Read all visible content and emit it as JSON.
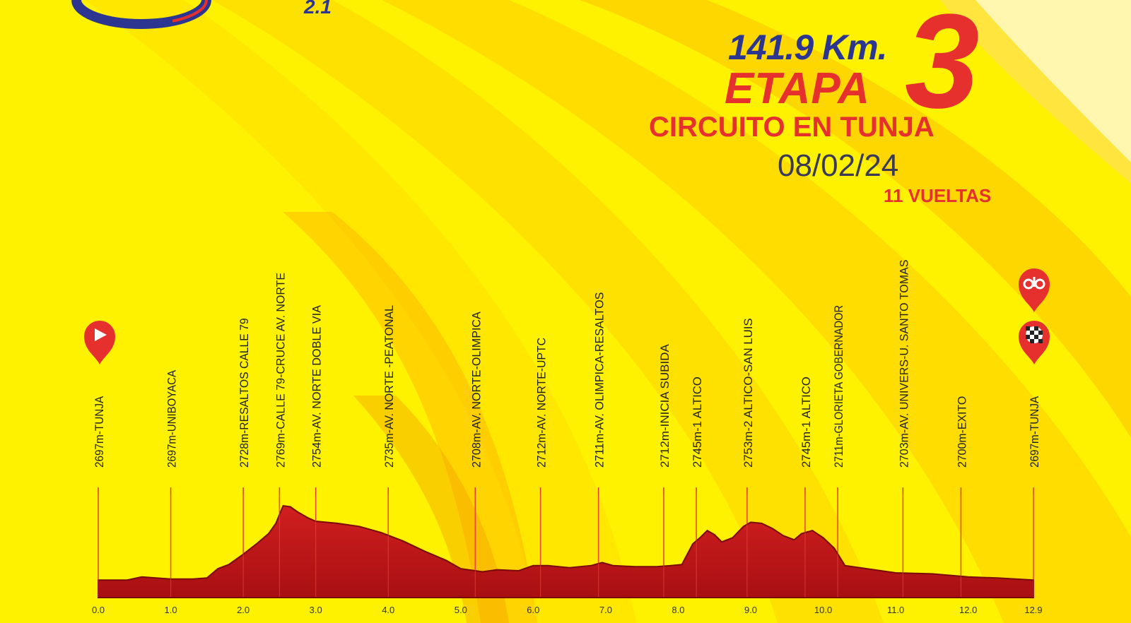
{
  "header": {
    "category": "2.1",
    "distance": "141.9 Km.",
    "stage_word": "ETAPA",
    "stage_number": "3",
    "route": "CIRCUITO EN TUNJA",
    "date": "08/02/24",
    "laps": "11 VUELTAS"
  },
  "colors": {
    "profile": "#c8161b",
    "title_blue": "#2c3691",
    "title_red": "#e6302d",
    "marker_line": "#e0392f"
  },
  "chart_data": {
    "type": "area",
    "x_axis": {
      "range": [
        0,
        12.9
      ],
      "tick_labels": [
        "0.0",
        "1.0",
        "2.0",
        "3.0",
        "4.0",
        "5.0",
        "6.0",
        "7.0",
        "8.0",
        "9.0",
        "10.0",
        "11.0",
        "12.0",
        "12.9"
      ],
      "tick_values": [
        0,
        1,
        2,
        3,
        4,
        5,
        6,
        7,
        8,
        9,
        10,
        11,
        12,
        12.9
      ]
    },
    "y_axis": {
      "range": [
        2680,
        2780
      ]
    },
    "series": [
      {
        "x": [
          0,
          0.4,
          0.6,
          0.8,
          1.0,
          1.3,
          1.5,
          1.65,
          1.8,
          2.0,
          2.2,
          2.35,
          2.45,
          2.55,
          2.65,
          2.75,
          2.9,
          3.0,
          3.3,
          3.6,
          3.9,
          4.2,
          4.5,
          4.8,
          5.0,
          5.3,
          5.5,
          5.8,
          6.0,
          6.2,
          6.5,
          6.8,
          6.95,
          7.1,
          7.4,
          7.7,
          7.9,
          8.05,
          8.2,
          8.3,
          8.4,
          8.5,
          8.6,
          8.75,
          8.9,
          9.0,
          9.15,
          9.3,
          9.45,
          9.6,
          9.7,
          9.85,
          10.0,
          10.15,
          10.3,
          10.6,
          11.0,
          11.5,
          12.0,
          12.4,
          12.9
        ],
        "y": [
          2697,
          2697,
          2700,
          2699,
          2698,
          2698,
          2699,
          2708,
          2712,
          2722,
          2733,
          2742,
          2752,
          2769,
          2768,
          2763,
          2757,
          2754,
          2752,
          2749,
          2743,
          2735,
          2725,
          2716,
          2708,
          2705,
          2707,
          2706,
          2711,
          2711,
          2709,
          2711,
          2714,
          2711,
          2710,
          2710,
          2711,
          2712,
          2732,
          2738,
          2745,
          2741,
          2734,
          2738,
          2749,
          2753,
          2752,
          2747,
          2740,
          2736,
          2742,
          2745,
          2738,
          2728,
          2711,
          2708,
          2704,
          2703,
          2700,
          2699,
          2697
        ]
      }
    ],
    "waypoints": [
      {
        "km": 0.0,
        "label": "2697m-TUNJA"
      },
      {
        "km": 1.0,
        "label": "2697m-UNIBOYACA"
      },
      {
        "km": 2.0,
        "label": "2728m-RESALTOS CALLE 79"
      },
      {
        "km": 2.5,
        "label": "2769m-CALLE 79-CRUCE AV. NORTE"
      },
      {
        "km": 3.0,
        "label": "2754m-AV. NORTE DOBLE VIA"
      },
      {
        "km": 4.0,
        "label": "2735m-AV. NORTE -PEATONAL"
      },
      {
        "km": 5.2,
        "label": "2708m-AV. NORTE-OLIMPICA"
      },
      {
        "km": 6.1,
        "label": "2712m-AV. NORTE-UPTC"
      },
      {
        "km": 6.9,
        "label": "2711m-AV. OLIMPICA-RESALTOS"
      },
      {
        "km": 7.8,
        "label": "2712m-INICIA SUBIDA"
      },
      {
        "km": 8.25,
        "label": "2745m-1 ALTICO"
      },
      {
        "km": 8.95,
        "label": "2753m-2 ALTICO-SAN LUIS"
      },
      {
        "km": 9.75,
        "label": "2745m-1 ALTICO"
      },
      {
        "km": 10.2,
        "label": "2711m-GLORIETA GOBERNADOR"
      },
      {
        "km": 11.1,
        "label": "2703m-AV. UNIVERS-U. SANTO TOMAS"
      },
      {
        "km": 11.9,
        "label": "2700m-EXITO"
      },
      {
        "km": 12.9,
        "label": "2697m-TUNJA"
      }
    ]
  }
}
